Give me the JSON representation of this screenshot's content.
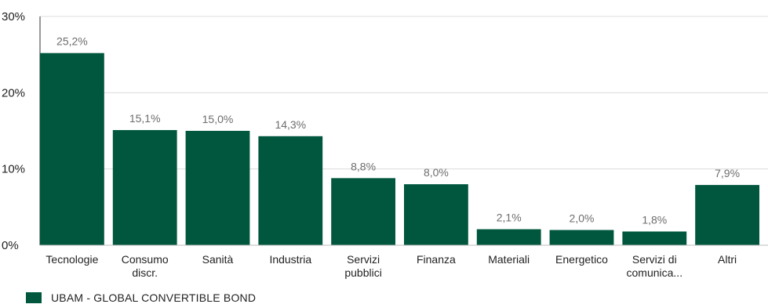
{
  "chart_data": {
    "type": "bar",
    "categories": [
      [
        "Tecnologie"
      ],
      [
        "Consumo",
        "discr."
      ],
      [
        "Sanità"
      ],
      [
        "Industria"
      ],
      [
        "Servizi",
        "pubblici"
      ],
      [
        "Finanza"
      ],
      [
        "Materiali"
      ],
      [
        "Energetico"
      ],
      [
        "Servizi di",
        "comunica..."
      ],
      [
        "Altri"
      ]
    ],
    "series": [
      {
        "name": "UBAM - GLOBAL CONVERTIBLE BOND",
        "values": [
          25.2,
          15.1,
          15.0,
          14.3,
          8.8,
          8.0,
          2.1,
          2.0,
          1.8,
          7.9
        ],
        "data_labels": [
          "25,2%",
          "15,1%",
          "15,0%",
          "14,3%",
          "8,8%",
          "8,0%",
          "2,1%",
          "2,0%",
          "1,8%",
          "7,9%"
        ],
        "color": "#00573d"
      }
    ],
    "yticks": [
      {
        "value": 0,
        "label": "0%"
      },
      {
        "value": 10,
        "label": "10%"
      },
      {
        "value": 20,
        "label": "20%"
      },
      {
        "value": 30,
        "label": "30%"
      }
    ],
    "ylim": [
      0,
      30
    ],
    "grid": true,
    "legend_position": "bottom-left"
  }
}
